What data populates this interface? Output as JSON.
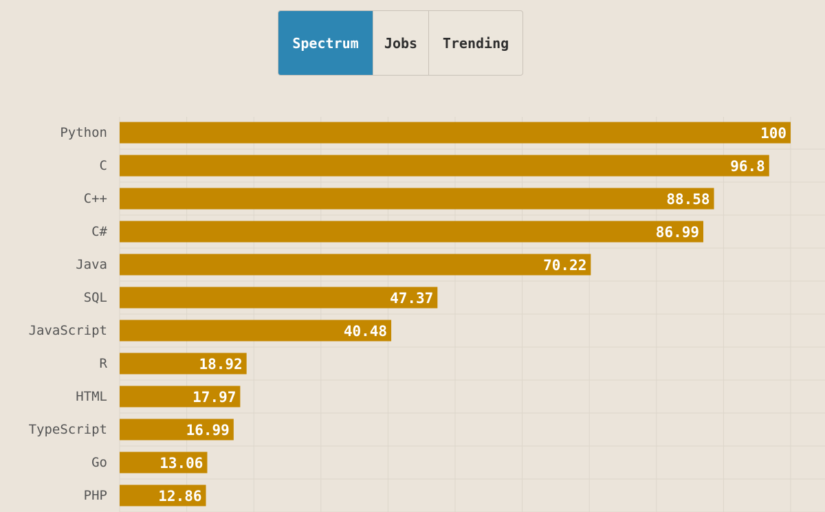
{
  "tabs": [
    {
      "label": "Spectrum",
      "active": true
    },
    {
      "label": "Jobs",
      "active": false
    },
    {
      "label": "Trending",
      "active": false
    }
  ],
  "colors": {
    "background": "#ebe4da",
    "bar": "#c48800",
    "active_tab": "#2d86b3",
    "grid": "#ddd6cb",
    "label_text": "#555555",
    "value_text": "#ffffff"
  },
  "chart_data": {
    "type": "bar",
    "orientation": "horizontal",
    "categories": [
      "Python",
      "C",
      "C++",
      "C#",
      "Java",
      "SQL",
      "JavaScript",
      "R",
      "HTML",
      "TypeScript",
      "Go",
      "PHP"
    ],
    "values": [
      100,
      96.8,
      88.58,
      86.99,
      70.22,
      47.37,
      40.48,
      18.92,
      17.97,
      16.99,
      13.06,
      12.86
    ],
    "value_labels": [
      "100",
      "96.8",
      "88.58",
      "86.99",
      "70.22",
      "47.37",
      "40.48",
      "18.92",
      "17.97",
      "16.99",
      "13.06",
      "12.86"
    ],
    "xlim": [
      0,
      100
    ],
    "grid": true
  }
}
